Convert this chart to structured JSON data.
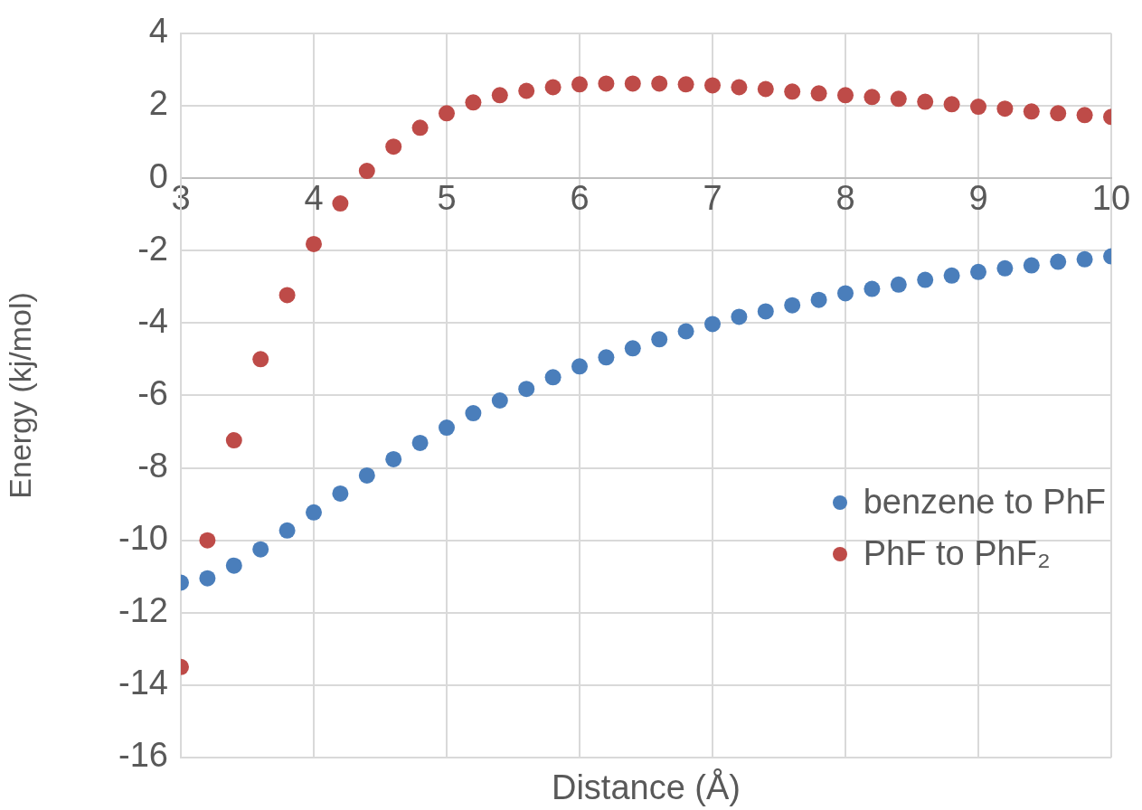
{
  "chart_data": {
    "type": "scatter",
    "xlabel": "Distance (Å)",
    "ylabel": "Energy (kj/mol)",
    "xlim": [
      3,
      10
    ],
    "xticks": [
      3,
      4,
      5,
      6,
      7,
      8,
      9,
      10
    ],
    "ylim": [
      -16,
      4
    ],
    "yticks": [
      -16,
      -14,
      -12,
      -10,
      -8,
      -6,
      -4,
      -2,
      0,
      2,
      4
    ],
    "grid": true,
    "legend": "right",
    "marker": "circle",
    "x": [
      3,
      3.2,
      3.4,
      3.6,
      3.8,
      4,
      4.2,
      4.4,
      4.6,
      4.8,
      5,
      5.2,
      5.4,
      5.6,
      5.8,
      6,
      6.2,
      6.4,
      6.6,
      6.8,
      7,
      7.2,
      7.4,
      7.6,
      7.8,
      8,
      8.2,
      8.4,
      8.6,
      8.8,
      9,
      9.2,
      9.4,
      9.6,
      9.8,
      10
    ],
    "series": [
      {
        "name": "benzene to PhF",
        "color": "#4a7ebb",
        "values": [
          -11.17,
          -11.05,
          -10.7,
          -10.25,
          -9.73,
          -9.23,
          -8.71,
          -8.21,
          -7.76,
          -7.31,
          -6.89,
          -6.49,
          -6.14,
          -5.82,
          -5.5,
          -5.2,
          -4.95,
          -4.7,
          -4.45,
          -4.23,
          -4.03,
          -3.83,
          -3.68,
          -3.51,
          -3.36,
          -3.18,
          -3.06,
          -2.94,
          -2.81,
          -2.69,
          -2.59,
          -2.49,
          -2.41,
          -2.31,
          -2.24,
          -2.16
        ]
      },
      {
        "name": "PhF to PhF₂",
        "color": "#be4b48",
        "values": [
          -13.5,
          -10,
          -7.24,
          -5,
          -3.23,
          -1.82,
          -0.7,
          0.2,
          0.87,
          1.39,
          1.79,
          2.09,
          2.29,
          2.41,
          2.51,
          2.59,
          2.61,
          2.61,
          2.61,
          2.59,
          2.56,
          2.51,
          2.46,
          2.39,
          2.34,
          2.29,
          2.24,
          2.19,
          2.11,
          2.04,
          1.97,
          1.92,
          1.84,
          1.79,
          1.74,
          1.69
        ]
      }
    ]
  }
}
